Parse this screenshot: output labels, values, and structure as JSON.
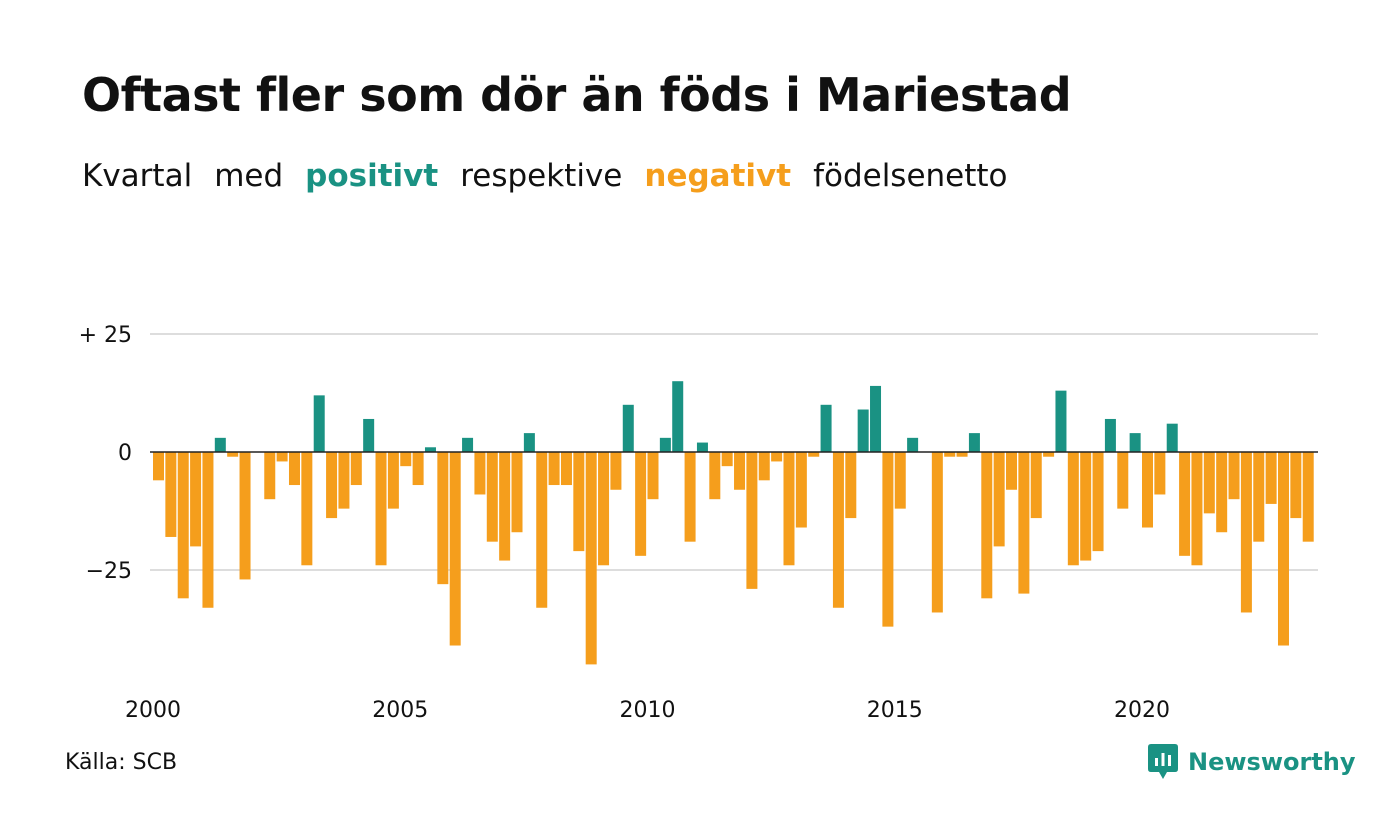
{
  "title": "Oftast fler som dör än föds i Mariestad",
  "subtitle": {
    "w1": "Kvartal",
    "w2": "med",
    "positive": "positivt",
    "w3": "respektive",
    "negative": "negativt",
    "w4": "födelsenetto"
  },
  "source": "Källa: SCB",
  "brand": "Newsworthy",
  "colors": {
    "positive": "#1a9283",
    "negative": "#f59e1c",
    "grid": "#dddddd",
    "zero": "#222222"
  },
  "chart_data": {
    "type": "bar",
    "start_year": 2000,
    "quarters_per_year": 4,
    "ylim": [
      -46,
      26
    ],
    "yticks": [
      {
        "value": 25,
        "label": "+ 25"
      },
      {
        "value": 0,
        "label": "0"
      },
      {
        "value": -25,
        "label": "−25"
      }
    ],
    "xticks": [
      {
        "value": 2000,
        "label": "2000"
      },
      {
        "value": 2005,
        "label": "2005"
      },
      {
        "value": 2010,
        "label": "2010"
      },
      {
        "value": 2015,
        "label": "2015"
      },
      {
        "value": 2020,
        "label": "2020"
      }
    ],
    "grid": true,
    "values": [
      -6,
      -18,
      -31,
      -20,
      -33,
      3,
      -1,
      -27,
      0,
      -10,
      -2,
      -7,
      -24,
      12,
      -14,
      -12,
      -7,
      7,
      -24,
      -12,
      -3,
      -7,
      1,
      -28,
      -41,
      3,
      -9,
      -19,
      -23,
      -17,
      4,
      -33,
      -7,
      -7,
      -21,
      -45,
      -24,
      -8,
      10,
      -22,
      -10,
      3,
      15,
      -19,
      2,
      -10,
      -3,
      -8,
      -29,
      -6,
      -2,
      -24,
      -16,
      -1,
      10,
      -33,
      -14,
      9,
      14,
      -37,
      -12,
      3,
      0,
      -34,
      -1,
      -1,
      4,
      -31,
      -20,
      -8,
      -30,
      -14,
      -1,
      13,
      -24,
      -23,
      -21,
      7,
      -12,
      4,
      -16,
      -9,
      6,
      -22,
      -24,
      -13,
      -17,
      -10,
      -34,
      -19,
      -11,
      -41,
      -14,
      -19
    ]
  }
}
